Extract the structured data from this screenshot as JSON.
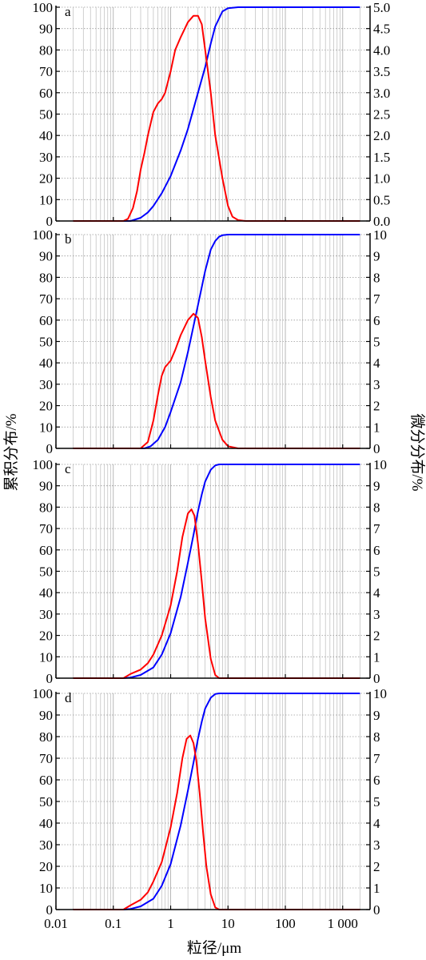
{
  "xlabel": "粒径/μm",
  "ylabel_left": "累积分布/%",
  "ylabel_right": "微分分布/%",
  "x_ticks": [
    {
      "value": 0.01,
      "label": "0.01"
    },
    {
      "value": 0.1,
      "label": "0.1"
    },
    {
      "value": 1,
      "label": "1"
    },
    {
      "value": 10,
      "label": "10"
    },
    {
      "value": 100,
      "label": "100"
    },
    {
      "value": 1000,
      "label": "1 000"
    }
  ],
  "colors": {
    "cumulative": "#0000ff",
    "differential": "#ff0000",
    "grid": "#b0b0b0"
  },
  "chart_data": [
    {
      "type": "line",
      "label": "a",
      "xscale": "log",
      "xlim": [
        0.01,
        3000
      ],
      "ylim_left": [
        0,
        100
      ],
      "ylim_right": [
        0,
        5
      ],
      "left_ticks": [
        "0",
        "10",
        "20",
        "30",
        "40",
        "50",
        "60",
        "70",
        "80",
        "90",
        "100"
      ],
      "right_ticks": [
        "0.0",
        "0.5",
        "1.0",
        "1.5",
        "2.0",
        "2.5",
        "3.0",
        "3.5",
        "4.0",
        "4.5",
        "5.0"
      ],
      "series": [
        {
          "axis": "left",
          "color": "#0000ff",
          "x": [
            0.02,
            0.2,
            0.3,
            0.4,
            0.5,
            0.7,
            1.0,
            1.5,
            2.0,
            3.0,
            4.0,
            5.0,
            6.0,
            8.0,
            10,
            15,
            20,
            2000
          ],
          "y": [
            0,
            0,
            1.5,
            4,
            7,
            13,
            21,
            33,
            43,
            60,
            72,
            83,
            91,
            98,
            99.5,
            100,
            100,
            100
          ]
        },
        {
          "axis": "right",
          "color": "#ff0000",
          "x": [
            0.02,
            0.15,
            0.18,
            0.22,
            0.26,
            0.3,
            0.35,
            0.4,
            0.5,
            0.6,
            0.7,
            0.8,
            1.0,
            1.2,
            1.5,
            2.0,
            2.5,
            3.0,
            3.5,
            4.0,
            5.0,
            6.0,
            8.0,
            10,
            12,
            15,
            20,
            2000
          ],
          "y": [
            0,
            0,
            0.05,
            0.3,
            0.7,
            1.2,
            1.6,
            2.0,
            2.55,
            2.75,
            2.85,
            3.0,
            3.5,
            4.0,
            4.3,
            4.65,
            4.8,
            4.8,
            4.6,
            4.0,
            3.0,
            2.0,
            1.0,
            0.35,
            0.1,
            0.02,
            0,
            0
          ]
        }
      ]
    },
    {
      "type": "line",
      "label": "b",
      "xscale": "log",
      "xlim": [
        0.01,
        3000
      ],
      "ylim_left": [
        0,
        100
      ],
      "ylim_right": [
        0,
        10
      ],
      "left_ticks": [
        "0",
        "10",
        "20",
        "30",
        "40",
        "50",
        "60",
        "70",
        "80",
        "90",
        "100"
      ],
      "right_ticks": [
        "0",
        "1",
        "2",
        "3",
        "4",
        "5",
        "6",
        "7",
        "8",
        "9",
        "10"
      ],
      "series": [
        {
          "axis": "left",
          "color": "#0000ff",
          "x": [
            0.02,
            0.35,
            0.45,
            0.6,
            0.8,
            1.0,
            1.5,
            2.0,
            3.0,
            4.0,
            5.0,
            6.0,
            7.0,
            8.0,
            10,
            2000
          ],
          "y": [
            0,
            0,
            1,
            4,
            10,
            17,
            31,
            45,
            67,
            83,
            93,
            97,
            99,
            99.7,
            100,
            100
          ]
        },
        {
          "axis": "right",
          "color": "#ff0000",
          "x": [
            0.02,
            0.3,
            0.4,
            0.5,
            0.6,
            0.7,
            0.8,
            1.0,
            1.2,
            1.5,
            2.0,
            2.5,
            3.0,
            3.5,
            4.0,
            5.0,
            6.0,
            8.0,
            10,
            15,
            2000
          ],
          "y": [
            0,
            0,
            0.3,
            1.3,
            2.5,
            3.4,
            3.8,
            4.1,
            4.6,
            5.3,
            6.0,
            6.3,
            6.1,
            5.2,
            4.1,
            2.4,
            1.3,
            0.4,
            0.1,
            0,
            0
          ]
        }
      ]
    },
    {
      "type": "line",
      "label": "c",
      "xscale": "log",
      "xlim": [
        0.01,
        3000
      ],
      "ylim_left": [
        0,
        100
      ],
      "ylim_right": [
        0,
        10
      ],
      "left_ticks": [
        "0",
        "10",
        "20",
        "30",
        "40",
        "50",
        "60",
        "70",
        "80",
        "90",
        "100"
      ],
      "right_ticks": [
        "0",
        "1",
        "2",
        "3",
        "4",
        "5",
        "6",
        "7",
        "8",
        "9",
        "10"
      ],
      "series": [
        {
          "axis": "left",
          "color": "#0000ff",
          "x": [
            0.02,
            0.15,
            0.2,
            0.3,
            0.5,
            0.7,
            1.0,
            1.5,
            2.0,
            2.5,
            3.0,
            3.5,
            4.0,
            5.0,
            6.0,
            7.0,
            8.0,
            2000
          ],
          "y": [
            0,
            0,
            0.3,
            1.5,
            5,
            11,
            21,
            38,
            54,
            67,
            78,
            86,
            92,
            97.5,
            99.5,
            100,
            100,
            100
          ]
        },
        {
          "axis": "right",
          "color": "#ff0000",
          "x": [
            0.02,
            0.15,
            0.2,
            0.3,
            0.4,
            0.5,
            0.7,
            1.0,
            1.3,
            1.6,
            2.0,
            2.3,
            2.6,
            3.0,
            3.5,
            4.0,
            5.0,
            6.0,
            7.0,
            2000
          ],
          "y": [
            0,
            0,
            0.2,
            0.4,
            0.7,
            1.1,
            2.0,
            3.4,
            5.0,
            6.6,
            7.7,
            7.9,
            7.6,
            6.3,
            4.5,
            2.8,
            0.9,
            0.15,
            0,
            0
          ]
        }
      ]
    },
    {
      "type": "line",
      "label": "d",
      "xscale": "log",
      "xlim": [
        0.01,
        3000
      ],
      "ylim_left": [
        0,
        100
      ],
      "ylim_right": [
        0,
        10
      ],
      "left_ticks": [
        "0",
        "10",
        "20",
        "30",
        "40",
        "50",
        "60",
        "70",
        "80",
        "90",
        "100"
      ],
      "right_ticks": [
        "0",
        "1",
        "2",
        "3",
        "4",
        "5",
        "6",
        "7",
        "8",
        "9",
        "10"
      ],
      "series": [
        {
          "axis": "left",
          "color": "#0000ff",
          "x": [
            0.02,
            0.15,
            0.2,
            0.3,
            0.5,
            0.7,
            1.0,
            1.5,
            2.0,
            2.5,
            3.0,
            3.5,
            4.0,
            5.0,
            6.0,
            7.0,
            8.0,
            2000
          ],
          "y": [
            0,
            0,
            0.3,
            1.5,
            5,
            11,
            21,
            39,
            55,
            68,
            79,
            87,
            93,
            98,
            99.7,
            100,
            100,
            100
          ]
        },
        {
          "axis": "right",
          "color": "#ff0000",
          "x": [
            0.02,
            0.15,
            0.2,
            0.3,
            0.4,
            0.5,
            0.7,
            1.0,
            1.3,
            1.6,
            1.9,
            2.2,
            2.5,
            2.8,
            3.2,
            3.7,
            4.2,
            5.0,
            6.0,
            7.0,
            2000
          ],
          "y": [
            0,
            0,
            0.2,
            0.45,
            0.8,
            1.3,
            2.2,
            3.8,
            5.4,
            7.0,
            7.9,
            8.05,
            7.7,
            6.9,
            5.4,
            3.5,
            2.0,
            0.7,
            0.1,
            0,
            0
          ]
        }
      ]
    }
  ]
}
